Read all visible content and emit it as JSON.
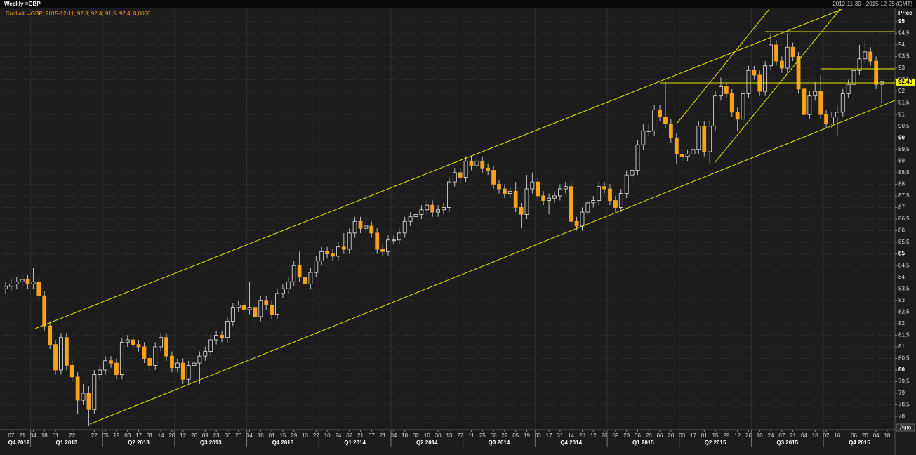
{
  "chart_data": {
    "type": "candlestick",
    "title": "Weekly =GBP",
    "date_range": "2012-11-30 - 2015-12-25 (GMT)",
    "legend": "Cndlvol; =GBP; 2015-12-11; 92,3; 92,4; 91,5; 92,4; 0,0000",
    "y_label": "Price",
    "button": "Auto",
    "up_color": "#e8e8e8",
    "down_color": "#f7a21b",
    "grid": true,
    "last_price": {
      "value": 92.4,
      "label": "92,40"
    },
    "xlim": [
      -0.5,
      160.4
    ],
    "ylim": [
      77.43,
      95.54
    ],
    "yticks": [
      78,
      {
        "value": 78.5,
        "label": "78,5"
      },
      79,
      {
        "value": 79.5,
        "label": "79,5"
      },
      80,
      {
        "value": 80.5,
        "label": "80,5"
      },
      81,
      {
        "value": 81.5,
        "label": "81,5"
      },
      82,
      {
        "value": 82.5,
        "label": "82,5"
      },
      83,
      {
        "value": 83.5,
        "label": "83,5"
      },
      84,
      {
        "value": 84.5,
        "label": "84,5"
      },
      85,
      {
        "value": 85.5,
        "label": "85,5"
      },
      86,
      {
        "value": 86.5,
        "label": "86,5"
      },
      87,
      {
        "value": 87.5,
        "label": "87,5"
      },
      88,
      {
        "value": 88.5,
        "label": "88,5"
      },
      89,
      {
        "value": 89.5,
        "label": "89,5"
      },
      90,
      {
        "value": 90.5,
        "label": "90,5"
      },
      91,
      {
        "value": 91.5,
        "label": "91,5"
      },
      92,
      {
        "value": 92.5,
        "label": "92,5"
      },
      93,
      {
        "value": 93.5,
        "label": "93,5"
      },
      94,
      {
        "value": 94.5,
        "label": "94,5"
      },
      95
    ],
    "xticks": [
      {
        "value": 1,
        "label": "07"
      },
      {
        "value": 3,
        "label": "21"
      },
      {
        "value": 5,
        "label": "04"
      },
      {
        "value": 7,
        "label": "18"
      },
      {
        "value": 9,
        "label": "01"
      },
      {
        "value": 12,
        "label": "22"
      },
      {
        "value": 16,
        "label": "22"
      },
      {
        "value": 18,
        "label": "05"
      },
      {
        "value": 20,
        "label": "19"
      },
      {
        "value": 22,
        "label": "03"
      },
      {
        "value": 24,
        "label": "17"
      },
      {
        "value": 26,
        "label": "31"
      },
      {
        "value": 28,
        "label": "14"
      },
      {
        "value": 30,
        "label": "28"
      },
      {
        "value": 32,
        "label": "12"
      },
      {
        "value": 34,
        "label": "26"
      },
      {
        "value": 36,
        "label": "09"
      },
      {
        "value": 38,
        "label": "23"
      },
      {
        "value": 40,
        "label": "06"
      },
      {
        "value": 42,
        "label": "20"
      },
      {
        "value": 44,
        "label": "04"
      },
      {
        "value": 46,
        "label": "18"
      },
      {
        "value": 48,
        "label": "01"
      },
      {
        "value": 50,
        "label": "15"
      },
      {
        "value": 52,
        "label": "29"
      },
      {
        "value": 54,
        "label": "13"
      },
      {
        "value": 56,
        "label": "27"
      },
      {
        "value": 58,
        "label": "10"
      },
      {
        "value": 60,
        "label": "24"
      },
      {
        "value": 62,
        "label": "07"
      },
      {
        "value": 64,
        "label": "21"
      },
      {
        "value": 66,
        "label": "07"
      },
      {
        "value": 68,
        "label": "21"
      },
      {
        "value": 70,
        "label": "04"
      },
      {
        "value": 72,
        "label": "18"
      },
      {
        "value": 74,
        "label": "02"
      },
      {
        "value": 76,
        "label": "16"
      },
      {
        "value": 78,
        "label": "30"
      },
      {
        "value": 80,
        "label": "13"
      },
      {
        "value": 82,
        "label": "27"
      },
      {
        "value": 84,
        "label": "11"
      },
      {
        "value": 86,
        "label": "25"
      },
      {
        "value": 88,
        "label": "08"
      },
      {
        "value": 90,
        "label": "22"
      },
      {
        "value": 92,
        "label": "05"
      },
      {
        "value": 94,
        "label": "19"
      },
      {
        "value": 96,
        "label": "03"
      },
      {
        "value": 98,
        "label": "17"
      },
      {
        "value": 100,
        "label": "31"
      },
      {
        "value": 102,
        "label": "14"
      },
      {
        "value": 104,
        "label": "28"
      },
      {
        "value": 106,
        "label": "12"
      },
      {
        "value": 108,
        "label": "26"
      },
      {
        "value": 110,
        "label": "09"
      },
      {
        "value": 112,
        "label": "23"
      },
      {
        "value": 114,
        "label": "06"
      },
      {
        "value": 116,
        "label": "20"
      },
      {
        "value": 118,
        "label": "06"
      },
      {
        "value": 120,
        "label": "20"
      },
      {
        "value": 122,
        "label": "03"
      },
      {
        "value": 124,
        "label": "17"
      },
      {
        "value": 126,
        "label": "01"
      },
      {
        "value": 128,
        "label": "15"
      },
      {
        "value": 130,
        "label": "29"
      },
      {
        "value": 132,
        "label": "12"
      },
      {
        "value": 134,
        "label": "26"
      },
      {
        "value": 136,
        "label": "10"
      },
      {
        "value": 138,
        "label": "24"
      },
      {
        "value": 140,
        "label": "07"
      },
      {
        "value": 142,
        "label": "21"
      },
      {
        "value": 144,
        "label": "04"
      },
      {
        "value": 146,
        "label": "18"
      },
      {
        "value": 148,
        "label": "02"
      },
      {
        "value": 150,
        "label": "16"
      },
      {
        "value": 153,
        "label": "06"
      },
      {
        "value": 155,
        "label": "20"
      },
      {
        "value": 157,
        "label": "04"
      },
      {
        "value": 159,
        "label": "18"
      }
    ],
    "quarters": [
      {
        "value": -8.5,
        "label": "Q4 2012"
      },
      {
        "value": 4.5,
        "label": "Q1 2013"
      },
      {
        "value": 17.5,
        "label": "Q2 2013"
      },
      {
        "value": 30.5,
        "label": "Q3 2013"
      },
      {
        "value": 43.5,
        "label": "Q4 2013"
      },
      {
        "value": 56.5,
        "label": "Q1 2014"
      },
      {
        "value": 69.5,
        "label": "Q2 2014"
      },
      {
        "value": 82.5,
        "label": "Q3 2014"
      },
      {
        "value": 95.5,
        "label": "Q4 2014"
      },
      {
        "value": 108.5,
        "label": "Q1 2015"
      },
      {
        "value": 121.5,
        "label": "Q2 2015"
      },
      {
        "value": 134.5,
        "label": "Q3 2015"
      },
      {
        "value": 147.5,
        "label": "Q4 2015"
      }
    ],
    "open": [
      83.5,
      83.6,
      83.7,
      83.8,
      83.9,
      83.7,
      83.8,
      83.2,
      81.9,
      81.1,
      80.0,
      81.4,
      80.2,
      79.7,
      78.7,
      79.0,
      78.3,
      79.8,
      80.0,
      80.4,
      80.3,
      79.8,
      81.2,
      81.3,
      81.1,
      81.0,
      80.5,
      80.2,
      81.0,
      81.4,
      80.6,
      80.1,
      80.3,
      79.6,
      80.2,
      80.3,
      80.6,
      80.8,
      81.3,
      81.5,
      81.4,
      82.1,
      82.7,
      82.8,
      82.6,
      82.7,
      82.3,
      83.0,
      82.8,
      82.4,
      83.3,
      83.5,
      83.8,
      84.5,
      84.0,
      83.7,
      84.2,
      84.7,
      85.1,
      85.0,
      84.9,
      85.3,
      85.2,
      85.9,
      86.4,
      86.1,
      86.2,
      85.9,
      85.2,
      85.1,
      85.6,
      85.6,
      85.9,
      86.4,
      86.6,
      86.7,
      86.9,
      87.1,
      86.8,
      86.9,
      87.0,
      88.1,
      88.5,
      88.3,
      89.0,
      88.8,
      89.0,
      88.7,
      88.6,
      88.0,
      87.8,
      87.6,
      87.7,
      87.0,
      86.7,
      87.8,
      88.1,
      87.5,
      87.3,
      87.4,
      87.5,
      87.8,
      87.9,
      86.4,
      86.2,
      86.8,
      87.2,
      87.3,
      87.9,
      87.8,
      87.3,
      87.0,
      87.6,
      88.4,
      88.6,
      89.7,
      90.3,
      90.3,
      91.2,
      90.9,
      90.6,
      90.0,
      89.3,
      89.2,
      89.3,
      89.5,
      90.5,
      89.4,
      90.5,
      91.8,
      92.2,
      91.9,
      91.1,
      90.8,
      91.9,
      92.9,
      92.7,
      92.0,
      93.1,
      94.0,
      93.3,
      93.0,
      93.9,
      93.5,
      92.1,
      91.0,
      91.8,
      92.0,
      91.0,
      90.6,
      90.9,
      91.1,
      91.9,
      92.3,
      92.9,
      93.4,
      93.7,
      93.3,
      92.3
    ],
    "high": [
      83.8,
      83.9,
      84.0,
      84.1,
      84.1,
      84.4,
      84.0,
      83.4,
      82.1,
      81.3,
      81.6,
      81.6,
      80.4,
      79.9,
      79.4,
      79.3,
      80.0,
      80.2,
      80.6,
      80.6,
      80.5,
      81.4,
      81.5,
      81.5,
      81.3,
      81.2,
      80.7,
      81.2,
      81.6,
      81.6,
      80.8,
      80.5,
      80.5,
      80.4,
      80.5,
      80.8,
      81.0,
      81.5,
      81.7,
      81.7,
      82.3,
      82.9,
      83.0,
      83.0,
      83.8,
      82.9,
      83.2,
      83.2,
      83.0,
      83.5,
      83.7,
      84.0,
      84.7,
      85.1,
      84.2,
      84.4,
      84.9,
      85.3,
      85.3,
      85.2,
      85.5,
      85.9,
      86.1,
      86.6,
      86.6,
      86.4,
      86.4,
      86.1,
      85.4,
      85.8,
      85.8,
      86.1,
      86.6,
      86.8,
      86.9,
      87.1,
      87.3,
      87.3,
      87.1,
      87.2,
      88.3,
      88.7,
      88.7,
      89.2,
      89.2,
      89.2,
      89.2,
      88.9,
      88.8,
      88.2,
      88.0,
      87.9,
      88.1,
      87.2,
      88.4,
      88.5,
      88.3,
      87.7,
      87.6,
      87.7,
      88.0,
      88.1,
      88.1,
      86.6,
      87.0,
      87.4,
      87.5,
      88.1,
      88.1,
      88.0,
      87.5,
      87.8,
      88.6,
      88.8,
      89.9,
      90.6,
      90.6,
      91.4,
      91.4,
      92.4,
      90.8,
      90.2,
      89.5,
      89.5,
      89.7,
      90.7,
      90.7,
      90.7,
      92.0,
      92.6,
      92.4,
      92.1,
      91.3,
      92.1,
      93.1,
      93.1,
      92.9,
      93.3,
      94.5,
      94.2,
      93.5,
      94.5,
      94.1,
      93.7,
      92.3,
      92.0,
      92.4,
      92.7,
      91.2,
      91.1,
      91.4,
      92.1,
      92.5,
      93.1,
      94.0,
      94.2,
      93.9,
      93.5,
      92.4
    ],
    "low": [
      83.3,
      83.4,
      83.5,
      83.6,
      83.5,
      83.5,
      83.0,
      81.7,
      80.9,
      79.8,
      79.8,
      80.0,
      79.5,
      78.1,
      78.5,
      77.6,
      78.1,
      79.6,
      79.8,
      80.1,
      79.6,
      79.6,
      81.0,
      80.9,
      80.8,
      80.3,
      80.0,
      80.0,
      80.8,
      80.4,
      79.9,
      79.9,
      79.4,
      79.4,
      80.0,
      79.4,
      80.4,
      80.6,
      81.1,
      81.2,
      81.2,
      81.9,
      82.5,
      82.4,
      82.4,
      82.1,
      82.1,
      82.6,
      82.2,
      82.2,
      83.1,
      83.3,
      83.6,
      83.8,
      83.5,
      83.5,
      84.0,
      84.5,
      84.8,
      84.7,
      84.7,
      85.0,
      85.0,
      85.7,
      85.9,
      85.9,
      85.7,
      85.0,
      84.9,
      84.9,
      85.4,
      85.4,
      85.7,
      86.2,
      86.4,
      86.5,
      86.7,
      86.6,
      86.6,
      86.7,
      86.8,
      87.9,
      88.0,
      88.1,
      88.6,
      88.6,
      88.5,
      88.4,
      87.8,
      87.6,
      87.4,
      87.4,
      86.8,
      86.1,
      86.5,
      87.6,
      87.3,
      87.1,
      86.7,
      87.2,
      87.3,
      87.6,
      86.2,
      86.0,
      86.0,
      86.6,
      87.0,
      87.1,
      87.6,
      87.1,
      86.8,
      86.8,
      87.4,
      88.2,
      88.4,
      89.5,
      90.1,
      90.1,
      90.7,
      90.4,
      89.8,
      88.9,
      89.0,
      89.0,
      89.1,
      89.3,
      89.2,
      88.9,
      90.3,
      91.6,
      91.7,
      90.9,
      90.3,
      90.6,
      91.7,
      92.5,
      91.8,
      91.8,
      92.9,
      93.1,
      92.8,
      92.8,
      93.3,
      91.9,
      90.8,
      90.8,
      91.6,
      90.8,
      90.4,
      90.4,
      90.1,
      90.9,
      91.7,
      92.1,
      92.7,
      93.2,
      93.1,
      92.1,
      91.5
    ],
    "close": [
      83.6,
      83.7,
      83.8,
      83.9,
      83.7,
      83.8,
      83.2,
      81.9,
      81.1,
      80.0,
      81.4,
      80.2,
      79.7,
      78.7,
      79.0,
      78.3,
      79.8,
      80.0,
      80.4,
      80.3,
      79.8,
      81.2,
      81.3,
      81.1,
      81.0,
      80.5,
      80.2,
      81.0,
      81.4,
      80.6,
      80.1,
      80.3,
      79.6,
      80.2,
      80.3,
      80.6,
      80.8,
      81.3,
      81.5,
      81.4,
      82.1,
      82.7,
      82.8,
      82.6,
      82.7,
      82.3,
      83.0,
      82.8,
      82.4,
      83.3,
      83.5,
      83.8,
      84.5,
      84.0,
      83.7,
      84.2,
      84.7,
      85.1,
      85.0,
      84.9,
      85.3,
      85.2,
      85.9,
      86.4,
      86.1,
      86.2,
      85.9,
      85.2,
      85.1,
      85.6,
      85.6,
      85.9,
      86.4,
      86.6,
      86.7,
      86.9,
      87.1,
      86.8,
      86.9,
      87.0,
      88.1,
      88.5,
      88.3,
      89.0,
      88.8,
      89.0,
      88.7,
      88.6,
      88.0,
      87.8,
      87.6,
      87.7,
      87.0,
      86.7,
      87.8,
      88.1,
      87.5,
      87.3,
      87.4,
      87.5,
      87.8,
      87.9,
      86.4,
      86.2,
      86.8,
      87.2,
      87.3,
      87.9,
      87.8,
      87.3,
      87.0,
      87.6,
      88.4,
      88.6,
      89.7,
      90.3,
      90.3,
      91.2,
      90.9,
      90.6,
      90.0,
      89.3,
      89.2,
      89.3,
      89.5,
      90.5,
      89.4,
      90.5,
      91.8,
      92.2,
      91.9,
      91.1,
      90.8,
      91.9,
      92.9,
      92.7,
      92.0,
      93.1,
      94.0,
      93.3,
      93.0,
      93.9,
      93.5,
      92.1,
      91.0,
      91.8,
      92.0,
      91.0,
      90.6,
      90.9,
      91.1,
      91.9,
      92.3,
      92.9,
      93.4,
      93.7,
      93.3,
      92.3,
      92.4
    ]
  }
}
